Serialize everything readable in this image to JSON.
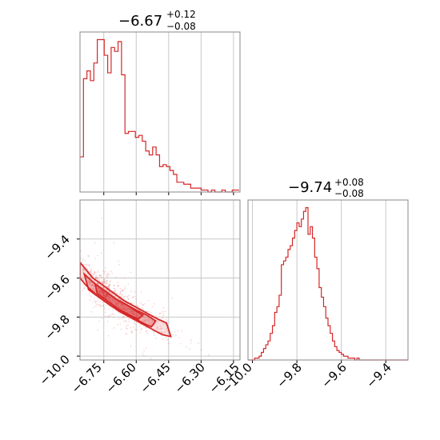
{
  "colors": {
    "accent": "#d62728",
    "grid": "#c8c8c8",
    "frame": "#888888",
    "background": "#ffffff"
  },
  "chart_data": [
    {
      "type": "histogram",
      "panel": "param-1 marginal",
      "title": {
        "median": "−6.67",
        "plus": "+0.12",
        "minus": "−0.08"
      },
      "xlim": [
        -6.86,
        -6.12
      ],
      "bin_width": 0.016,
      "bin_start": -6.86,
      "counts": [
        18,
        58,
        62,
        57,
        66,
        78,
        78,
        70,
        61,
        74,
        72,
        77,
        60,
        30,
        31,
        31,
        28,
        29,
        26,
        21,
        19,
        23,
        19,
        13,
        14,
        13,
        11,
        9,
        5,
        5,
        4,
        4,
        2,
        2,
        2,
        1,
        1,
        0,
        1,
        0,
        0,
        1,
        0,
        0,
        1,
        1
      ],
      "xticks": [
        -6.75,
        -6.6,
        -6.45,
        -6.3,
        -6.15
      ]
    },
    {
      "type": "histogram",
      "panel": "param-2 marginal",
      "title": {
        "median": "−9.74",
        "plus": "+0.08",
        "minus": "−0.08"
      },
      "xlim": [
        -10.02,
        -9.3
      ],
      "bin_width": 0.01,
      "bin_start": -10.02,
      "counts": [
        0,
        0,
        0,
        1,
        1,
        2,
        4,
        6,
        8,
        10,
        14,
        18,
        25,
        28,
        34,
        50,
        52,
        54,
        58,
        60,
        64,
        68,
        72,
        70,
        74,
        78,
        80,
        66,
        70,
        64,
        54,
        48,
        38,
        33,
        28,
        22,
        18,
        14,
        10,
        7,
        5,
        4,
        3,
        2,
        2,
        1,
        1,
        1,
        0,
        1,
        0,
        0,
        0,
        0,
        0,
        0,
        0,
        0,
        0,
        0,
        0,
        0,
        0,
        0,
        0,
        0,
        0,
        0,
        0,
        0,
        0,
        0
      ],
      "xticks": [
        -10.0,
        -9.8,
        -9.6,
        -9.4
      ]
    },
    {
      "type": "scatter",
      "panel": "2D joint",
      "xlim": [
        -6.86,
        -6.12
      ],
      "ylim": [
        -10.02,
        -9.2
      ],
      "xticks": [
        -6.75,
        -6.6,
        -6.45,
        -6.3,
        -6.15
      ],
      "yticks": [
        -10.0,
        -9.8,
        -9.6,
        -9.4
      ],
      "xtick_labels": [
        "−6.75",
        "−6.60",
        "−6.45",
        "−6.30",
        "−6.15"
      ],
      "ytick_labels": [
        "−10.0",
        "−9.8",
        "−9.6",
        "−9.4"
      ],
      "ridge": {
        "x": [
          -6.86,
          -6.8,
          -6.75,
          -6.7,
          -6.65,
          -6.6,
          -6.55,
          -6.5,
          -6.45,
          -6.4,
          -6.35,
          -6.3,
          -6.25
        ],
        "y": [
          -9.54,
          -9.62,
          -9.67,
          -9.71,
          -9.75,
          -9.78,
          -9.81,
          -9.84,
          -9.87,
          -9.9,
          -9.93,
          -9.96,
          -9.99
        ]
      },
      "contours": [
        {
          "level": "outer",
          "x": [
            -6.86,
            -6.8,
            -6.75,
            -6.7,
            -6.65,
            -6.6,
            -6.55,
            -6.5,
            -6.46,
            -6.44,
            -6.48,
            -6.53,
            -6.58,
            -6.63,
            -6.68,
            -6.73,
            -6.78,
            -6.83,
            -6.86
          ],
          "y": [
            -9.52,
            -9.6,
            -9.64,
            -9.68,
            -9.72,
            -9.75,
            -9.78,
            -9.81,
            -9.83,
            -9.9,
            -9.89,
            -9.86,
            -9.83,
            -9.8,
            -9.77,
            -9.73,
            -9.69,
            -9.64,
            -9.6
          ]
        },
        {
          "level": "mid",
          "x": [
            -6.84,
            -6.79,
            -6.74,
            -6.69,
            -6.64,
            -6.59,
            -6.55,
            -6.51,
            -6.53,
            -6.57,
            -6.62,
            -6.67,
            -6.72,
            -6.77,
            -6.82
          ],
          "y": [
            -9.58,
            -9.63,
            -9.67,
            -9.71,
            -9.74,
            -9.77,
            -9.79,
            -9.82,
            -9.85,
            -9.83,
            -9.8,
            -9.77,
            -9.74,
            -9.7,
            -9.66
          ]
        },
        {
          "level": "inner",
          "x": [
            -6.79,
            -6.74,
            -6.69,
            -6.64,
            -6.6,
            -6.57,
            -6.59,
            -6.63,
            -6.68,
            -6.73,
            -6.78
          ],
          "y": [
            -9.63,
            -9.67,
            -9.71,
            -9.74,
            -9.77,
            -9.79,
            -9.81,
            -9.79,
            -9.76,
            -9.72,
            -9.68
          ]
        }
      ]
    }
  ],
  "axis_labels": {
    "p1_xticks": [
      "−6.75",
      "−6.60",
      "−6.45",
      "−6.30",
      "−6.15"
    ],
    "p2_xticks": [
      "−10.0",
      "−9.8",
      "−9.6",
      "−9.4"
    ],
    "yticks": [
      "−10.0",
      "−9.8",
      "−9.6",
      "−9.4"
    ]
  }
}
